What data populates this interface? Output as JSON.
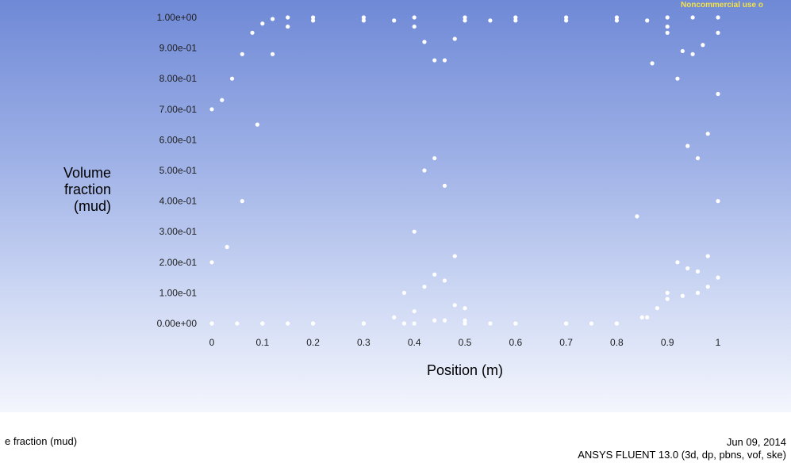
{
  "watermark": "Noncommercial use o",
  "footer": {
    "caption": "e fraction (mud)",
    "date": "Jun 09, 2014",
    "solver": "ANSYS FLUENT 13.0 (3d, dp, pbns, vof, ske)"
  },
  "chart_data": {
    "type": "scatter",
    "xlabel": "Position (m)",
    "ylabel": [
      "Volume",
      "fraction",
      "(mud)"
    ],
    "xlim": [
      0,
      1
    ],
    "ylim": [
      0,
      1
    ],
    "xticks": [
      "0",
      "0.1",
      "0.2",
      "0.3",
      "0.4",
      "0.5",
      "0.6",
      "0.7",
      "0.8",
      "0.9",
      "1"
    ],
    "yticks": [
      "0.00e+00",
      "1.00e-01",
      "2.00e-01",
      "3.00e-01",
      "4.00e-01",
      "5.00e-01",
      "6.00e-01",
      "7.00e-01",
      "8.00e-01",
      "9.00e-01",
      "1.00e+00"
    ],
    "marker_color": "#ffffff",
    "series": [
      {
        "x": [
          0.0,
          0.02,
          0.04,
          0.06,
          0.08,
          0.1,
          0.12,
          0.15,
          0.2,
          0.3,
          0.4,
          0.5,
          0.6,
          0.7,
          0.8,
          0.9,
          0.95,
          1.0
        ],
        "y": [
          0.7,
          0.73,
          0.8,
          0.88,
          0.95,
          0.98,
          0.995,
          1.0,
          1.0,
          1.0,
          1.0,
          1.0,
          1.0,
          1.0,
          1.0,
          1.0,
          1.0,
          1.0
        ]
      },
      {
        "x": [
          0.0,
          0.03,
          0.06,
          0.09,
          0.12,
          0.15,
          0.2,
          0.3,
          0.36,
          0.4,
          0.42,
          0.44,
          0.46,
          0.48,
          0.5,
          0.55,
          0.6,
          0.7,
          0.8,
          0.86,
          0.9,
          0.93,
          0.95,
          0.97,
          1.0
        ],
        "y": [
          0.2,
          0.25,
          0.4,
          0.65,
          0.88,
          0.97,
          0.99,
          0.99,
          0.99,
          0.97,
          0.92,
          0.86,
          0.86,
          0.93,
          0.99,
          0.99,
          0.99,
          0.99,
          0.99,
          0.99,
          0.95,
          0.89,
          0.88,
          0.91,
          0.95
        ]
      },
      {
        "x": [
          0.0,
          0.05,
          0.1,
          0.15,
          0.2,
          0.3,
          0.36,
          0.38,
          0.4,
          0.42,
          0.44,
          0.46,
          0.48,
          0.5,
          0.55,
          0.6,
          0.7,
          0.8,
          0.84,
          0.87,
          0.9,
          0.92,
          0.94,
          0.96,
          0.98,
          1.0
        ],
        "y": [
          0.0,
          0.0,
          0.0,
          0.0,
          0.0,
          0.0,
          0.02,
          0.1,
          0.3,
          0.5,
          0.54,
          0.45,
          0.22,
          0.05,
          0.0,
          0.0,
          0.0,
          0.0,
          0.35,
          0.85,
          0.97,
          0.8,
          0.58,
          0.54,
          0.62,
          0.75
        ]
      },
      {
        "x": [
          0.0,
          0.1,
          0.2,
          0.3,
          0.38,
          0.4,
          0.42,
          0.44,
          0.46,
          0.48,
          0.5,
          0.6,
          0.7,
          0.8,
          0.86,
          0.9,
          0.92,
          0.94,
          0.96,
          0.98,
          1.0
        ],
        "y": [
          0.0,
          0.0,
          0.0,
          0.0,
          0.0,
          0.04,
          0.12,
          0.16,
          0.14,
          0.06,
          0.01,
          0.0,
          0.0,
          0.0,
          0.02,
          0.1,
          0.2,
          0.18,
          0.17,
          0.22,
          0.4
        ]
      },
      {
        "x": [
          0.0,
          0.1,
          0.2,
          0.3,
          0.4,
          0.44,
          0.46,
          0.5,
          0.6,
          0.7,
          0.75,
          0.8,
          0.85,
          0.88,
          0.9,
          0.93,
          0.96,
          0.98,
          1.0
        ],
        "y": [
          0.0,
          0.0,
          0.0,
          0.0,
          0.0,
          0.01,
          0.01,
          0.0,
          0.0,
          0.0,
          0.0,
          0.0,
          0.02,
          0.05,
          0.08,
          0.09,
          0.1,
          0.12,
          0.15
        ]
      }
    ]
  }
}
